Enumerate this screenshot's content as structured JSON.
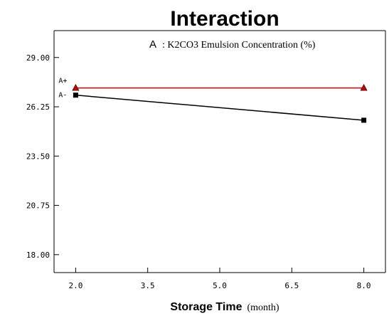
{
  "chart_data": {
    "type": "line",
    "title": "Interaction",
    "xlabel": "Storage Time",
    "xlabel_unit": "(month)",
    "ylabel": "",
    "legend_factor_letter": "A",
    "legend_factor_text": ": K2CO3 Emulsion Concentration (%)",
    "x_ticks": [
      "2.0",
      "3.5",
      "5.0",
      "6.5",
      "8.0"
    ],
    "y_ticks": [
      "18.00",
      "20.75",
      "23.50",
      "26.25",
      "29.00"
    ],
    "xlim": [
      1.55,
      8.45
    ],
    "ylim": [
      17.0,
      30.5
    ],
    "grid": false,
    "series": [
      {
        "name": "A+",
        "x": [
          2.0,
          8.0
        ],
        "y": [
          27.3,
          27.3
        ],
        "color": "#cc0000",
        "marker": "triangle",
        "marker_color": "#cc0000"
      },
      {
        "name": "A-",
        "x": [
          2.0,
          8.0
        ],
        "y": [
          26.9,
          25.5
        ],
        "color": "#000000",
        "marker": "square",
        "marker_color": "#000000"
      }
    ]
  }
}
